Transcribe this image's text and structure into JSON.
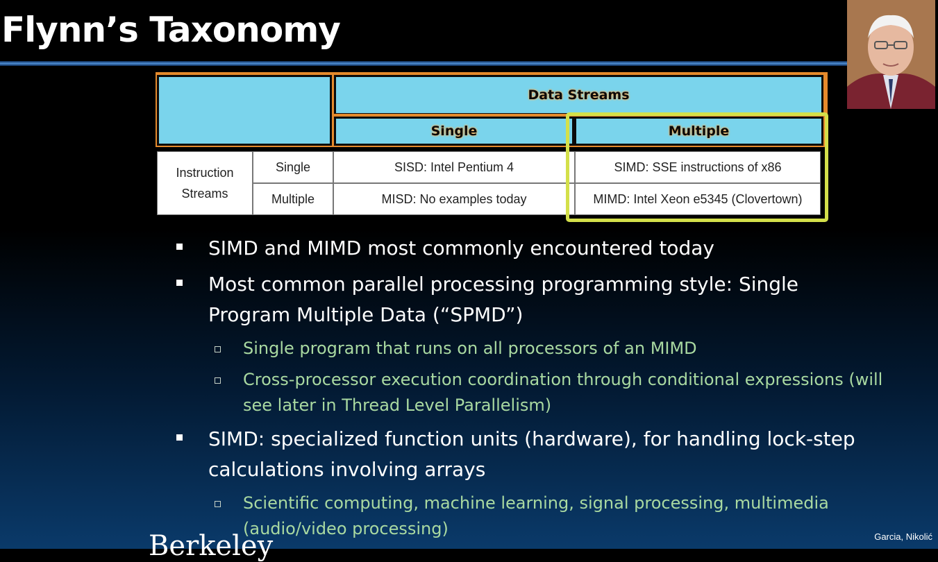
{
  "slide": {
    "title": "Flynn’s Taxonomy",
    "footer_left": "Berkeley",
    "footer_right": "Garcia, Nikolić"
  },
  "table": {
    "data_streams": "Data Streams",
    "single_col": "Single",
    "multiple_col": "Multiple",
    "instruction_streams": "Instruction Streams",
    "row_single": "Single",
    "row_multiple": "Multiple",
    "sisd": "SISD: Intel Pentium 4",
    "simd": "SIMD: SSE instructions of x86",
    "misd": "MISD: No examples today",
    "mimd": "MIMD: Intel Xeon e5345 (Clovertown)"
  },
  "bullets": {
    "b1": "SIMD and MIMD most commonly encountered today",
    "b2": "Most common parallel processing programming style: Single Program Multiple Data (“SPMD”)",
    "b2_sub1": "Single program that runs on all processors of an MIMD",
    "b2_sub2": "Cross-processor execution coordination through conditional expressions (will see later in Thread Level Parallelism)",
    "b3": "SIMD: specialized function units (hardware), for handling lock-step calculations involving arrays",
    "b3_sub1": "Scientific computing, machine learning, signal processing, multimedia (audio/video processing)"
  },
  "colors": {
    "header_blue": "#7ad4ec",
    "header_orange": "#e58a2c",
    "highlight": "#d4e04a",
    "sub_bullet_green": "#a9d9a1"
  },
  "icons": {
    "photo": "portrait-photo"
  }
}
